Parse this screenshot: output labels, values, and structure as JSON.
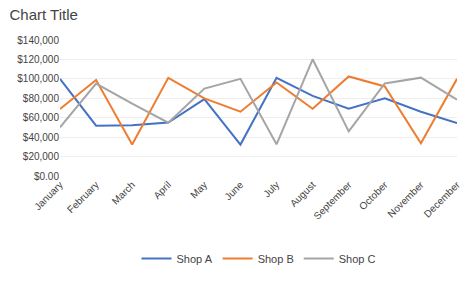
{
  "chart_data": {
    "type": "line",
    "title": "Chart Title",
    "categories": [
      "January",
      "February",
      "March",
      "April",
      "May",
      "June",
      "July",
      "August",
      "September",
      "October",
      "November",
      "December"
    ],
    "series": [
      {
        "name": "Shop A",
        "color": "#4472C4",
        "values": [
          100000,
          51795,
          52154,
          55077,
          79079,
          32345,
          101079,
          82405,
          69393,
          79885,
          66186,
          54464
        ]
      },
      {
        "name": "Shop B",
        "color": "#ED7D31",
        "values": [
          68938,
          98779,
          32345,
          101079,
          79885,
          66186,
          96358,
          69210,
          102448,
          92212,
          33722,
          100000
        ]
      },
      {
        "name": "Shop C",
        "color": "#A5A5A5",
        "values": [
          50000,
          95214,
          74568,
          54875,
          90000,
          100000,
          32654,
          120154,
          45852,
          95254,
          101254,
          78546
        ]
      }
    ],
    "ylim": [
      0,
      140000
    ],
    "yticks": [
      {
        "value": 0,
        "label": "$0.00"
      },
      {
        "value": 20000,
        "label": "$20,000"
      },
      {
        "value": 40000,
        "label": "$40,000"
      },
      {
        "value": 60000,
        "label": "$60,000"
      },
      {
        "value": 80000,
        "label": "$80,000"
      },
      {
        "value": 100000,
        "label": "$100,000"
      },
      {
        "value": 120000,
        "label": "$120,000"
      },
      {
        "value": 140000,
        "label": "$140,000"
      }
    ],
    "grid": true,
    "legend": "bottom"
  }
}
